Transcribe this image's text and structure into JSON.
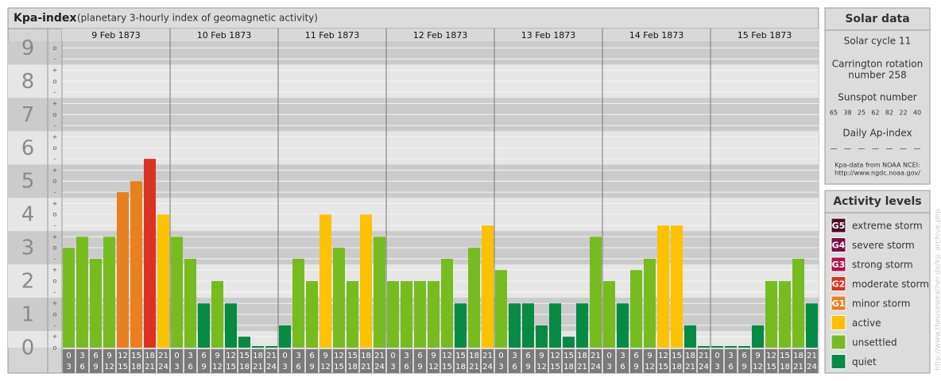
{
  "title": "Kpa-index",
  "subtitle": "(planetary 3-hourly index of geomagnetic activity)",
  "chart_data": {
    "type": "bar",
    "ylim": [
      0,
      9.2
    ],
    "yticks": [
      0,
      1,
      2,
      3,
      4,
      5,
      6,
      7,
      8,
      9
    ],
    "yticks_minor": [
      {
        "value": 0,
        "label": "o"
      },
      {
        "value": 0.33,
        "label": "+"
      },
      {
        "value": 0.67,
        "label": "-"
      },
      {
        "value": 1,
        "label": "o"
      },
      {
        "value": 1.33,
        "label": "+"
      },
      {
        "value": 1.67,
        "label": "-"
      },
      {
        "value": 2,
        "label": "o"
      },
      {
        "value": 2.33,
        "label": "+"
      },
      {
        "value": 2.67,
        "label": "-"
      },
      {
        "value": 3,
        "label": "o"
      },
      {
        "value": 3.33,
        "label": "+"
      },
      {
        "value": 3.67,
        "label": "-"
      },
      {
        "value": 4,
        "label": "o"
      },
      {
        "value": 4.33,
        "label": "+"
      },
      {
        "value": 4.67,
        "label": "-"
      },
      {
        "value": 5,
        "label": "o"
      },
      {
        "value": 5.33,
        "label": "+"
      },
      {
        "value": 5.67,
        "label": "-"
      },
      {
        "value": 6,
        "label": "o"
      },
      {
        "value": 6.33,
        "label": "+"
      },
      {
        "value": 6.67,
        "label": "-"
      },
      {
        "value": 7,
        "label": "o"
      },
      {
        "value": 7.33,
        "label": "+"
      },
      {
        "value": 7.67,
        "label": "-"
      },
      {
        "value": 8,
        "label": "o"
      },
      {
        "value": 8.33,
        "label": "+"
      },
      {
        "value": 8.67,
        "label": "-"
      },
      {
        "value": 9,
        "label": "o"
      }
    ],
    "hour_starts": [
      "0",
      "3",
      "6",
      "9",
      "12",
      "15",
      "18",
      "21"
    ],
    "hour_ends": [
      "3",
      "6",
      "9",
      "12",
      "15",
      "18",
      "21",
      "24"
    ],
    "days": [
      {
        "label": "9 Feb 1873",
        "values": [
          3,
          3.33,
          2.67,
          3.33,
          4.67,
          5,
          5.67,
          4
        ],
        "colors": [
          "#76bc21",
          "#76bc21",
          "#76bc21",
          "#76bc21",
          "#e8801f",
          "#e8801f",
          "#db3222",
          "#fcc200"
        ]
      },
      {
        "label": "10 Feb 1873",
        "values": [
          3.33,
          2.67,
          1.33,
          2,
          1.33,
          0.33,
          0,
          0
        ],
        "colors": [
          "#76bc21",
          "#76bc21",
          "#068a44",
          "#76bc21",
          "#068a44",
          "#068a44",
          "#068a44",
          "#068a44"
        ]
      },
      {
        "label": "11 Feb 1873",
        "values": [
          0.67,
          2.67,
          2,
          4,
          3,
          2,
          4,
          3.33
        ],
        "colors": [
          "#068a44",
          "#76bc21",
          "#76bc21",
          "#fcc200",
          "#76bc21",
          "#76bc21",
          "#fcc200",
          "#76bc21"
        ]
      },
      {
        "label": "12 Feb 1873",
        "values": [
          2,
          2,
          2,
          2,
          2.67,
          1.33,
          3,
          3.67
        ],
        "colors": [
          "#76bc21",
          "#76bc21",
          "#76bc21",
          "#76bc21",
          "#76bc21",
          "#068a44",
          "#76bc21",
          "#fcc200"
        ]
      },
      {
        "label": "13 Feb 1873",
        "values": [
          2.33,
          1.33,
          1.33,
          0.67,
          1.33,
          0.33,
          1.33,
          3.33
        ],
        "colors": [
          "#76bc21",
          "#068a44",
          "#068a44",
          "#068a44",
          "#068a44",
          "#068a44",
          "#068a44",
          "#76bc21"
        ]
      },
      {
        "label": "14 Feb 1873",
        "values": [
          2,
          1.33,
          2.33,
          2.67,
          3.67,
          3.67,
          0.67,
          0
        ],
        "colors": [
          "#76bc21",
          "#068a44",
          "#76bc21",
          "#76bc21",
          "#fcc200",
          "#fcc200",
          "#068a44",
          "#068a44"
        ]
      },
      {
        "label": "15 Feb 1873",
        "values": [
          0,
          0,
          0,
          0.67,
          2,
          2,
          2.67,
          1.33
        ],
        "colors": [
          "#068a44",
          "#068a44",
          "#068a44",
          "#068a44",
          "#76bc21",
          "#76bc21",
          "#76bc21",
          "#068a44"
        ]
      }
    ]
  },
  "solar_data": {
    "title": "Solar data",
    "cycle": "Solar cycle 11",
    "carrington": [
      "Carrington rotation",
      "number 258"
    ],
    "sunspot_title": "Sunspot number",
    "sunspots": [
      65,
      38,
      25,
      62,
      82,
      22,
      40
    ],
    "ap_title": "Daily Ap-index",
    "ap": [
      "—",
      "—",
      "—",
      "—",
      "—",
      "—",
      "—"
    ],
    "source": [
      "Kpa-data from NOAA NCEI:",
      "http://www.ngdc.noaa.gov/"
    ]
  },
  "activity_levels": {
    "title": "Activity levels",
    "items": [
      {
        "badge": "G5",
        "label": "extreme storm",
        "color": "#4a0a26"
      },
      {
        "badge": "G4",
        "label": "severe storm",
        "color": "#7a0c48"
      },
      {
        "badge": "G3",
        "label": "strong storm",
        "color": "#b1124b"
      },
      {
        "badge": "G2",
        "label": "moderate storm",
        "color": "#db3222"
      },
      {
        "badge": "G1",
        "label": "minor storm",
        "color": "#e8801f"
      },
      {
        "label": "active",
        "color": "#fcc200"
      },
      {
        "label": "unsettled",
        "color": "#76bc21"
      },
      {
        "label": "quiet",
        "color": "#068a44"
      }
    ]
  },
  "watermark": "http://www.theuseweather.de/kp_archive.php"
}
